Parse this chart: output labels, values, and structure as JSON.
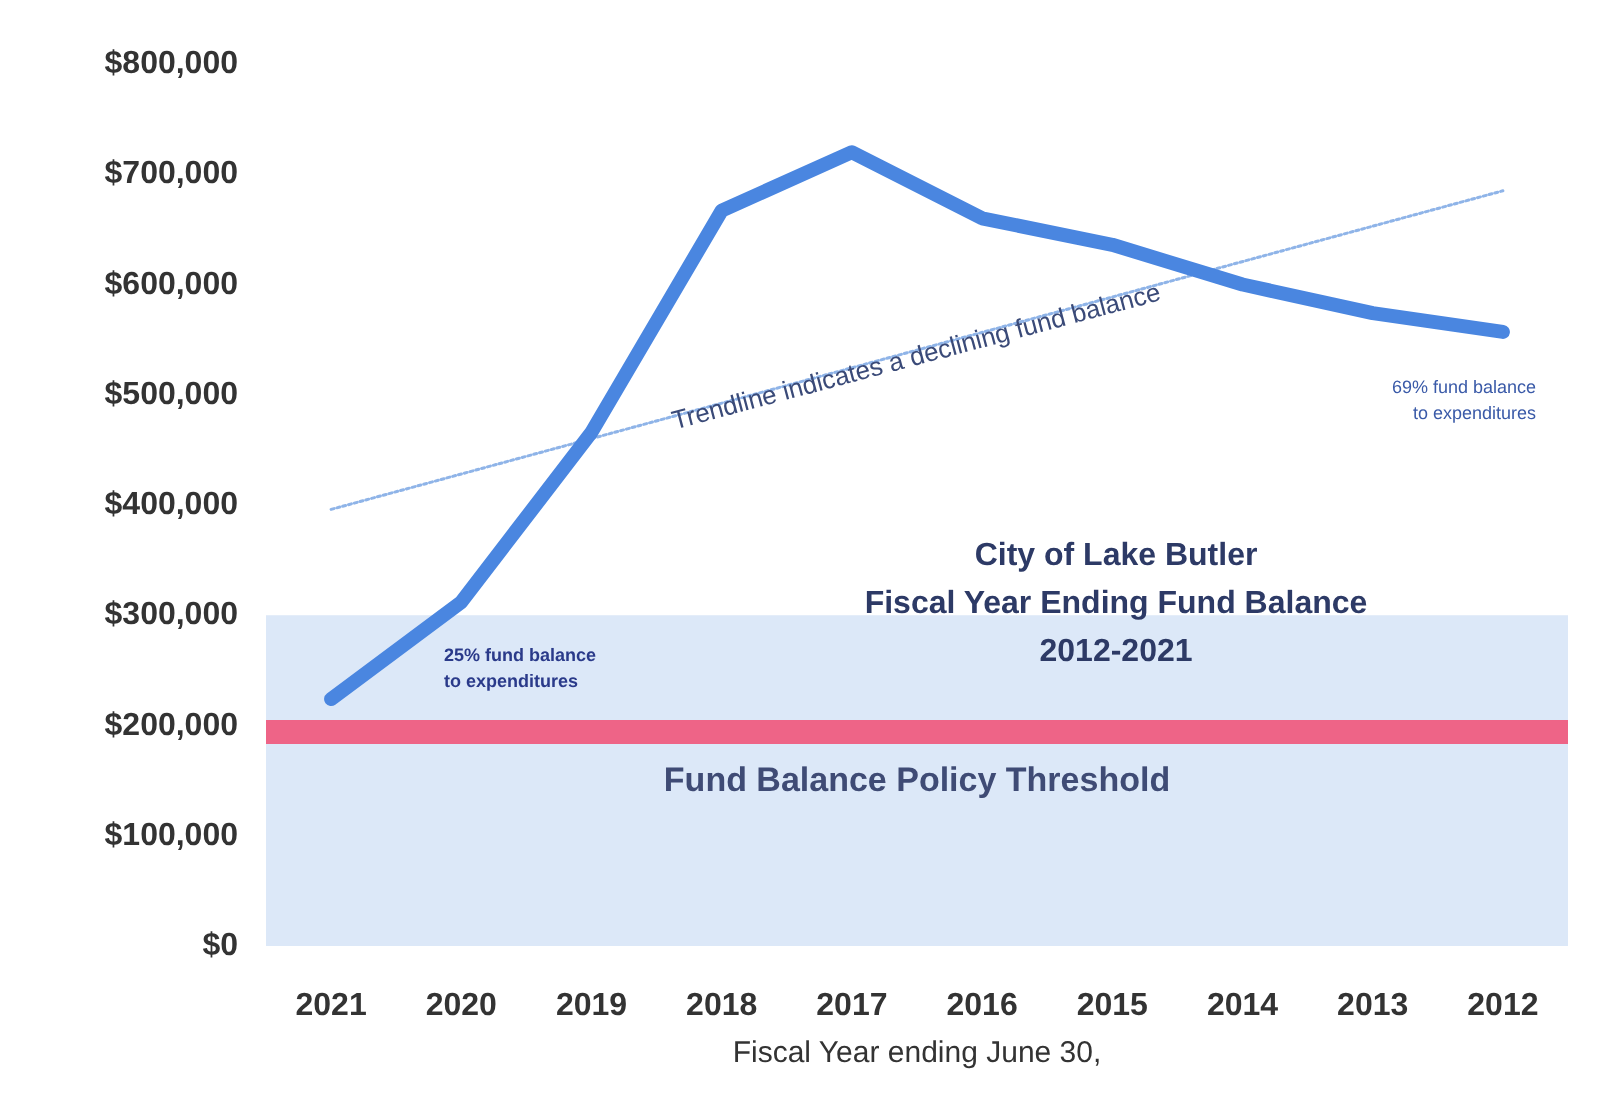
{
  "chart_data": {
    "type": "line",
    "title": "City of Lake Butler\nFiscal Year Ending Fund Balance\n2012-2021",
    "xlabel": "Fiscal Year ending June 30,",
    "categories": [
      "2021",
      "2020",
      "2019",
      "2018",
      "2017",
      "2016",
      "2015",
      "2014",
      "2013",
      "2012"
    ],
    "series": [
      {
        "color": "#4a86e0",
        "values": [
          224000,
          312000,
          466000,
          667000,
          720000,
          660000,
          636000,
          600000,
          574000,
          557000
        ]
      },
      {
        "color": "#8fb4e8",
        "line_style": "dotted",
        "values": [
          396000,
          null,
          null,
          null,
          null,
          null,
          null,
          null,
          null,
          685000
        ]
      }
    ],
    "ylim": [
      0,
      800000
    ],
    "yticks": [
      {
        "value": 0,
        "label": "$0"
      },
      {
        "value": 100000,
        "label": "$100,000"
      },
      {
        "value": 200000,
        "label": "$200,000"
      },
      {
        "value": 300000,
        "label": "$300,000"
      },
      {
        "value": 400000,
        "label": "$400,000"
      },
      {
        "value": 500000,
        "label": "$500,000"
      },
      {
        "value": 600000,
        "label": "$600,000"
      },
      {
        "value": 700000,
        "label": "$700,000"
      },
      {
        "value": 800000,
        "label": "$800,000"
      }
    ],
    "ref_lines": [
      {
        "axis": "y",
        "value": 195000,
        "label": "Fund Balance Policy Threshold",
        "color": "#f0557a"
      }
    ],
    "bands": [
      {
        "axis": "y",
        "from": 0,
        "to": 300000,
        "color": "#d3e2f6"
      }
    ],
    "annotations": [
      "Trendline indicates a declining fund balance",
      "25% fund balance\nto expenditures",
      "69% fund balance\nto expenditures"
    ],
    "grid": false,
    "marker": "none",
    "line_style": "solid"
  }
}
